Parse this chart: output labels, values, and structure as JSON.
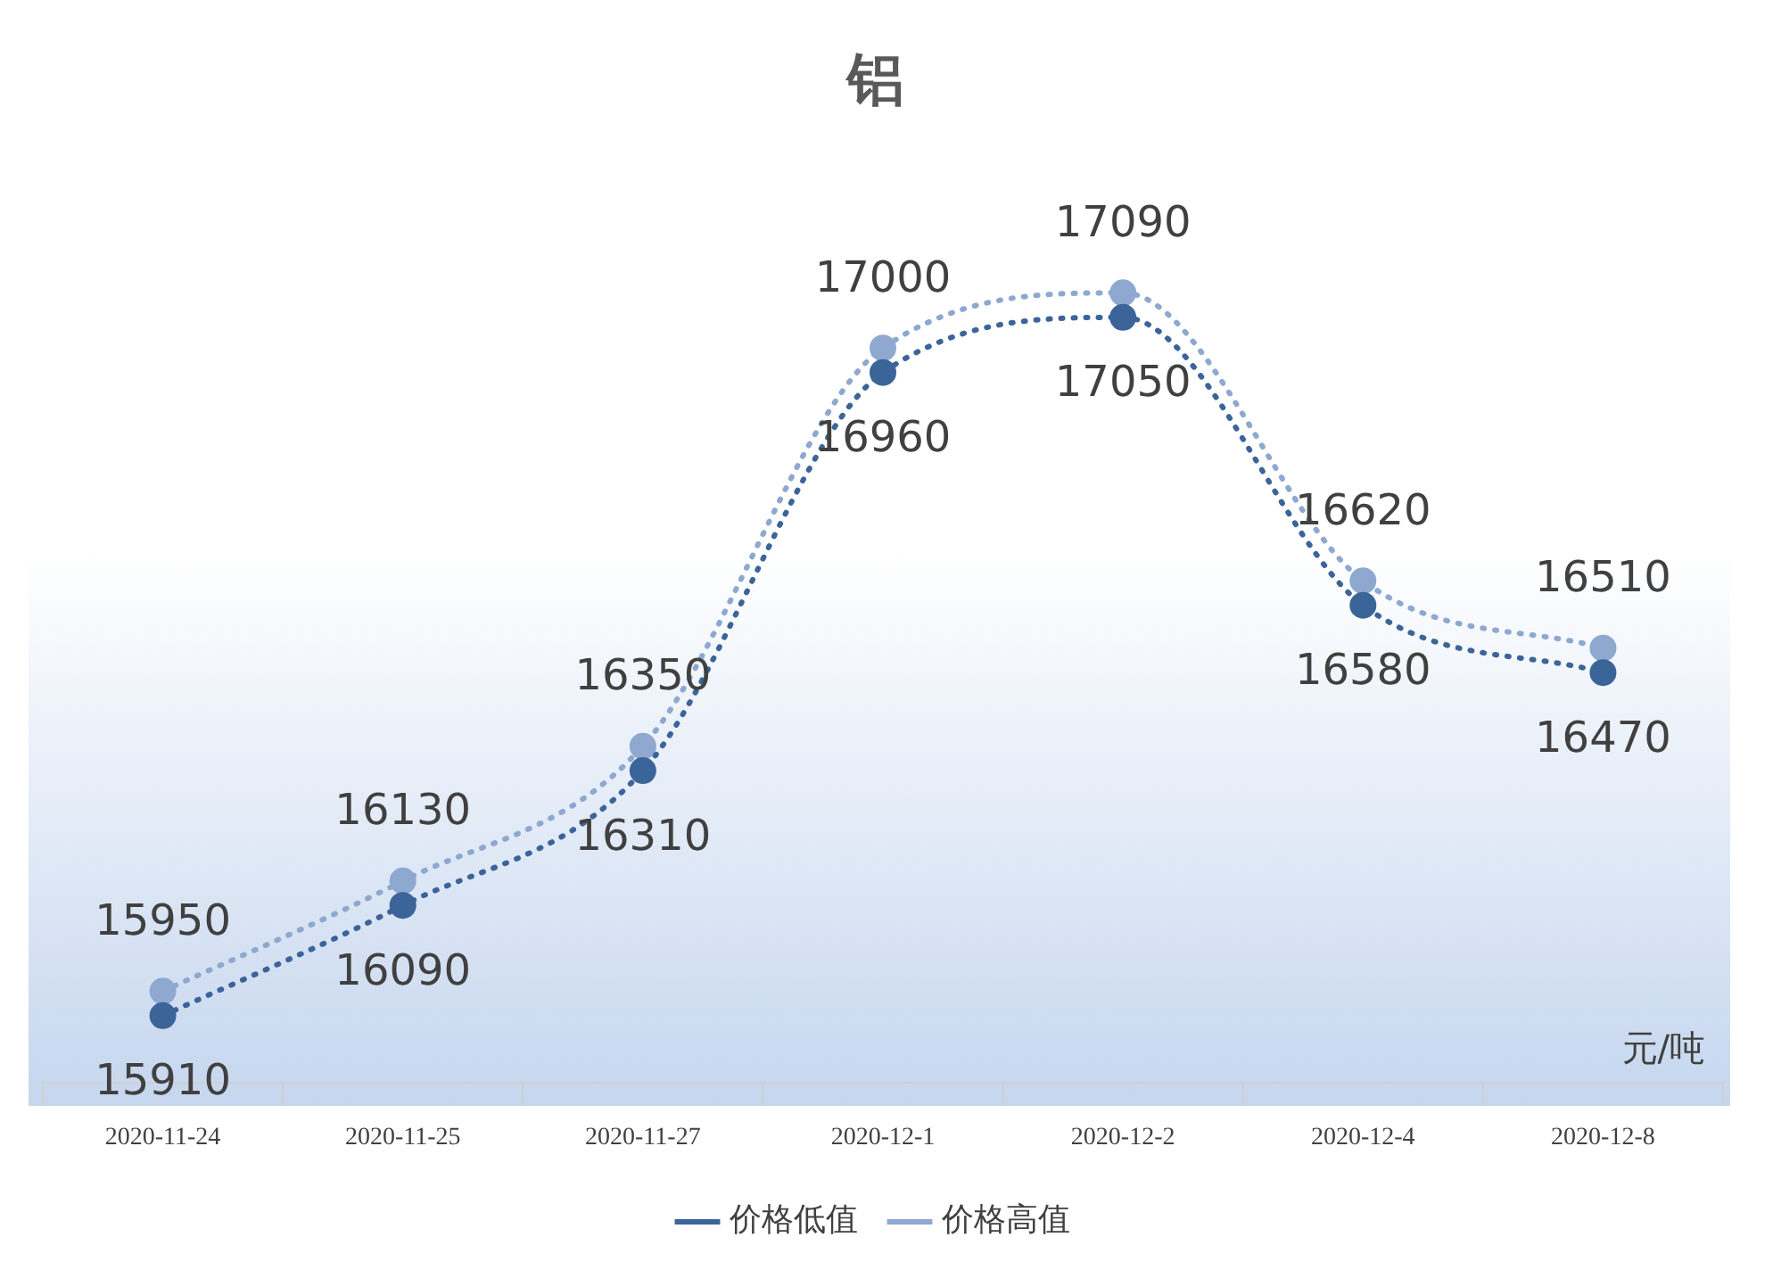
{
  "chart_data": {
    "type": "line",
    "title": "铝",
    "categories": [
      "2020-11-24",
      "2020-11-25",
      "2020-11-27",
      "2020-12-1",
      "2020-12-2",
      "2020-12-4",
      "2020-12-8"
    ],
    "series": [
      {
        "name": "价格低值",
        "color": "#3b6499",
        "values": [
          15910,
          16090,
          16310,
          16960,
          17050,
          16580,
          16470
        ]
      },
      {
        "name": "价格高值",
        "color": "#8ea8cf",
        "values": [
          15950,
          16130,
          16350,
          17000,
          17090,
          16620,
          16510
        ]
      }
    ],
    "annotations": [
      "元/吨"
    ],
    "data_labels": true,
    "legend": "bottom",
    "marker": "circle",
    "line_style": "dotted",
    "grid": false
  }
}
